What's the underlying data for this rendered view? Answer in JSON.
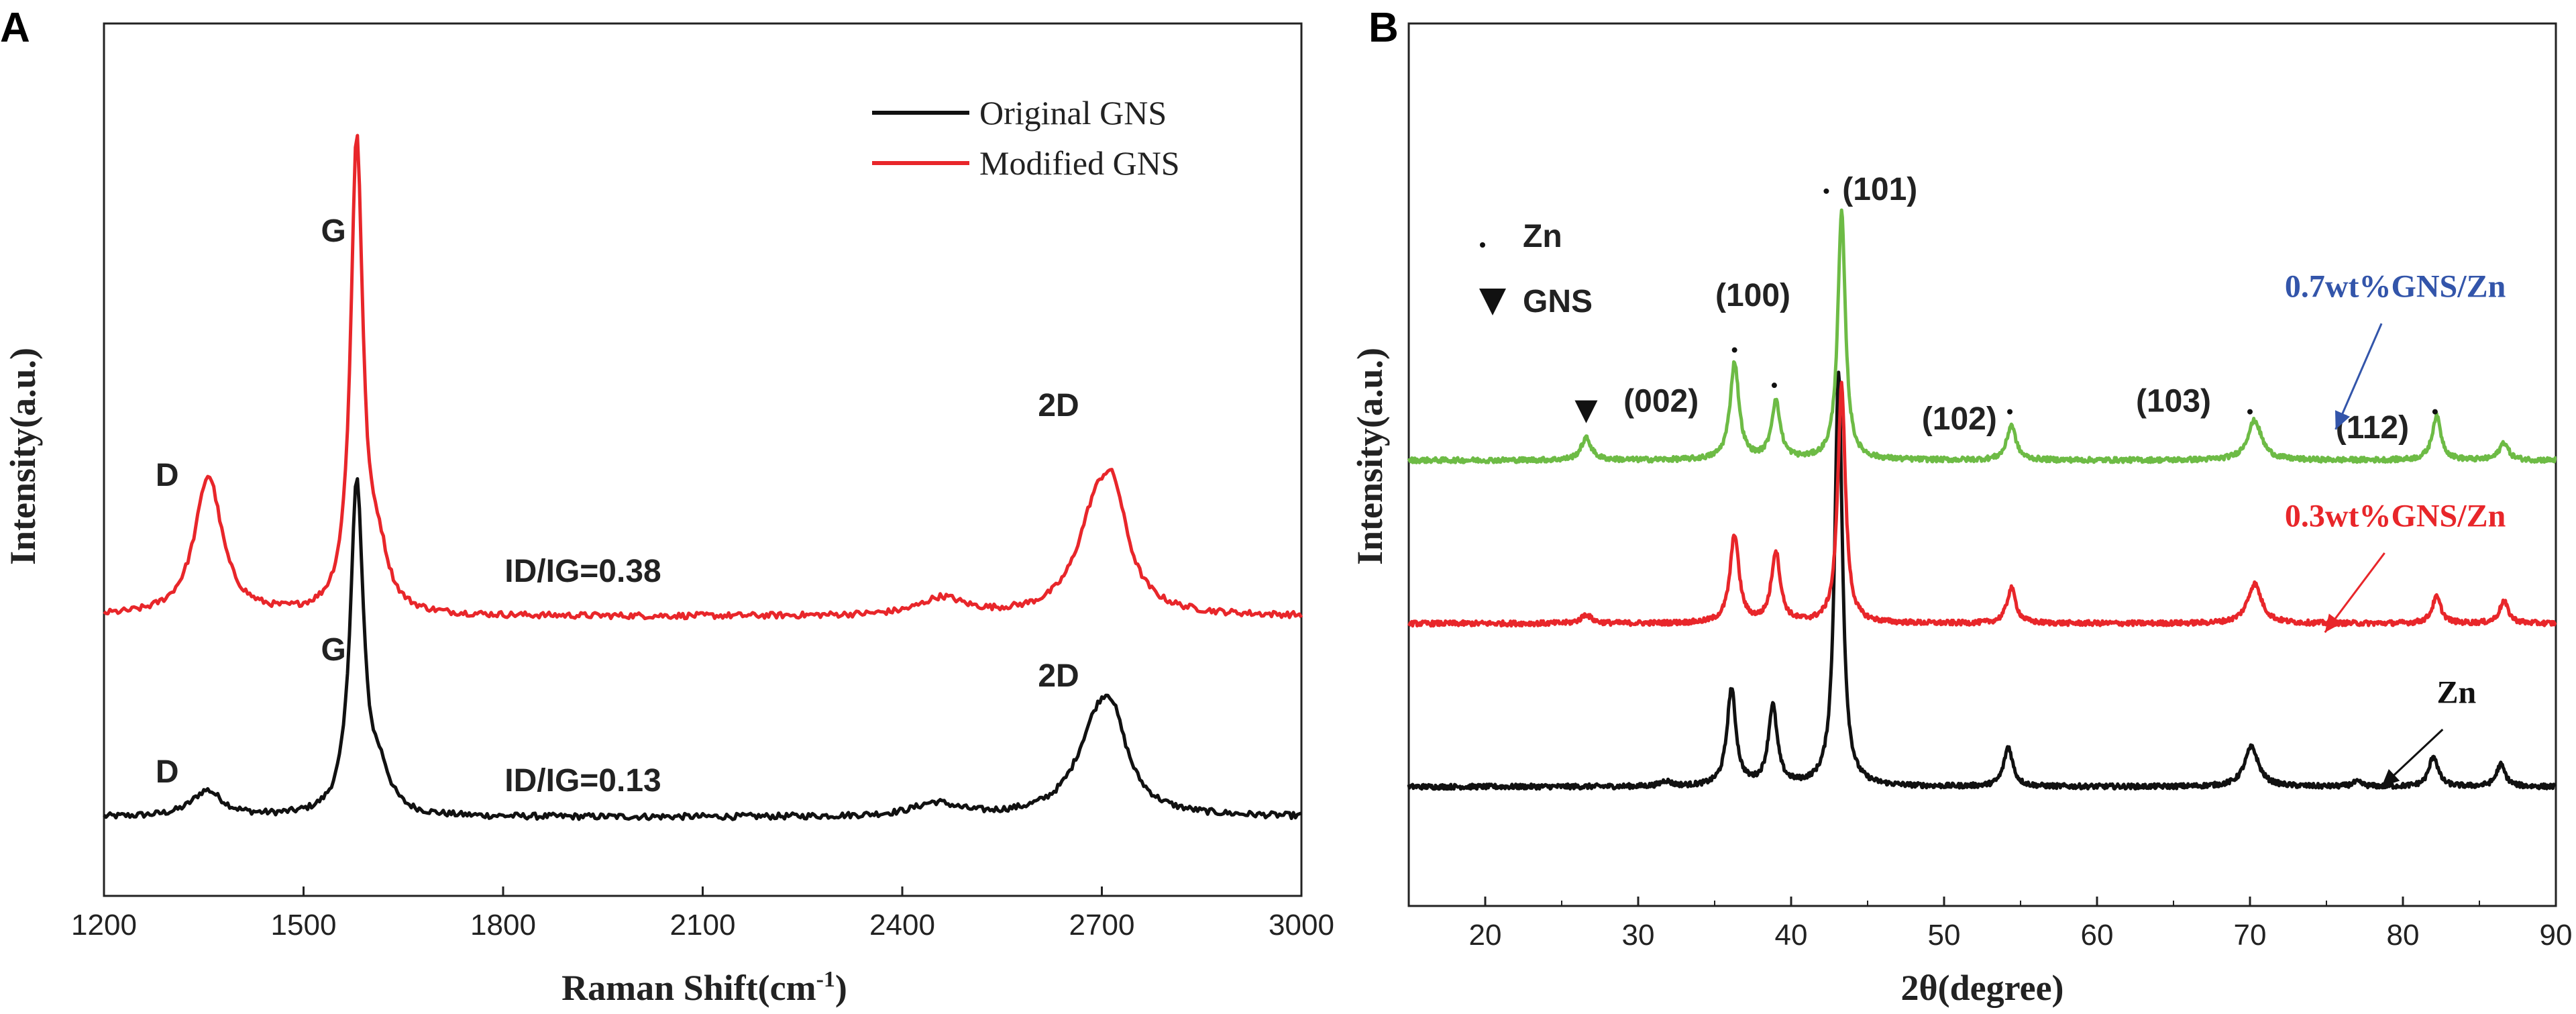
{
  "colors": {
    "black": "#111111",
    "red": "#e8262a",
    "green": "#6dbb45",
    "blue": "#3355aa",
    "axis": "#222222"
  },
  "chart_data": [
    {
      "type": "line",
      "panel_label": "A",
      "xlabel": "Raman Shift(cm",
      "xlabel_sup": "-1",
      "xlabel_close": ")",
      "ylabel": "Intensity(a.u.)",
      "xlim": [
        1200,
        3000
      ],
      "ylim": [
        0,
        100
      ],
      "xticks": [
        "1200",
        "1500",
        "1800",
        "2100",
        "2400",
        "2700",
        "3000"
      ],
      "legend": {
        "position": "top-right",
        "entries": [
          "Original GNS",
          "Modified GNS"
        ]
      },
      "series": [
        {
          "name": "Original GNS",
          "color": "#111111",
          "baseline": 9,
          "peaks": [
            {
              "x": 1355,
              "h": 3,
              "w": 28
            },
            {
              "x": 1580,
              "h": 38,
              "w": 12
            },
            {
              "x": 1615,
              "h": 4,
              "w": 18
            },
            {
              "x": 2450,
              "h": 1.5,
              "w": 40
            },
            {
              "x": 2690,
              "h": 8,
              "w": 38
            },
            {
              "x": 2715,
              "h": 8,
              "w": 28
            }
          ]
        },
        {
          "name": "Modified GNS",
          "color": "#e8262a",
          "baseline": 32,
          "peaks": [
            {
              "x": 1357,
              "h": 16,
              "w": 25
            },
            {
              "x": 1580,
              "h": 54,
              "w": 11
            },
            {
              "x": 1612,
              "h": 6,
              "w": 18
            },
            {
              "x": 2460,
              "h": 2,
              "w": 40
            },
            {
              "x": 2690,
              "h": 10,
              "w": 35
            },
            {
              "x": 2718,
              "h": 10,
              "w": 26
            }
          ]
        }
      ],
      "annotations": [
        {
          "text": "D",
          "x": 1295,
          "y": 47
        },
        {
          "text": "G",
          "x": 1545,
          "y": 75
        },
        {
          "text": "2D",
          "x": 2635,
          "y": 55
        },
        {
          "text": "ID/IG=0.38",
          "x": 1920,
          "y": 36
        },
        {
          "text": "D",
          "x": 1295,
          "y": 13
        },
        {
          "text": "G",
          "x": 1545,
          "y": 27
        },
        {
          "text": "2D",
          "x": 2635,
          "y": 24
        },
        {
          "text": "ID/IG=0.13",
          "x": 1920,
          "y": 12
        }
      ]
    },
    {
      "type": "line",
      "panel_label": "B",
      "xlabel": "2θ(degree)",
      "ylabel": "Intensity(a.u.)",
      "xlim": [
        15,
        90
      ],
      "ylim": [
        0,
        100
      ],
      "xticks": [
        "20",
        "30",
        "40",
        "50",
        "60",
        "70",
        "80",
        "90"
      ],
      "legend": {
        "position": "top-left",
        "entries": [
          "Zn",
          "GNS"
        ]
      },
      "series": [
        {
          "name": "Zn",
          "color": "#111111",
          "baseline": 13.5,
          "peaks": [
            {
              "x": 36.1,
              "h": 11,
              "w": 0.35
            },
            {
              "x": 38.8,
              "h": 9,
              "w": 0.35
            },
            {
              "x": 43.1,
              "h": 47,
              "w": 0.3
            },
            {
              "x": 54.2,
              "h": 4.5,
              "w": 0.35
            },
            {
              "x": 70.1,
              "h": 4.5,
              "w": 0.55
            },
            {
              "x": 82.0,
              "h": 3.5,
              "w": 0.35
            },
            {
              "x": 86.4,
              "h": 2.5,
              "w": 0.35
            },
            {
              "x": 31.8,
              "h": 0.6,
              "w": 0.4
            },
            {
              "x": 77.0,
              "h": 0.5,
              "w": 0.4
            }
          ]
        },
        {
          "name": "0.3wt%GNS/Zn",
          "color": "#e8262a",
          "baseline": 32,
          "peaks": [
            {
              "x": 26.6,
              "h": 1,
              "w": 0.4
            },
            {
              "x": 36.3,
              "h": 10,
              "w": 0.35
            },
            {
              "x": 39.0,
              "h": 8,
              "w": 0.35
            },
            {
              "x": 43.3,
              "h": 27,
              "w": 0.3
            },
            {
              "x": 54.4,
              "h": 4,
              "w": 0.35
            },
            {
              "x": 70.3,
              "h": 4.5,
              "w": 0.55
            },
            {
              "x": 82.2,
              "h": 3,
              "w": 0.35
            },
            {
              "x": 86.6,
              "h": 2.5,
              "w": 0.35
            }
          ]
        },
        {
          "name": "0.7wt%GNS/Zn",
          "color": "#6dbb45",
          "baseline": 50.5,
          "peaks": [
            {
              "x": 26.6,
              "h": 2.5,
              "w": 0.4
            },
            {
              "x": 36.3,
              "h": 11,
              "w": 0.35
            },
            {
              "x": 39.0,
              "h": 6.5,
              "w": 0.35
            },
            {
              "x": 43.3,
              "h": 28,
              "w": 0.3
            },
            {
              "x": 54.4,
              "h": 4,
              "w": 0.35
            },
            {
              "x": 70.3,
              "h": 4.5,
              "w": 0.55
            },
            {
              "x": 82.2,
              "h": 5,
              "w": 0.35
            },
            {
              "x": 86.6,
              "h": 2,
              "w": 0.35
            }
          ]
        }
      ],
      "annotations": [
        {
          "text": "(002)",
          "x": 31.5,
          "y": 56
        },
        {
          "text": "(100)",
          "x": 37.5,
          "y": 68
        },
        {
          "text": "(101)",
          "x": 45.8,
          "y": 80
        },
        {
          "text": "(102)",
          "x": 51,
          "y": 54
        },
        {
          "text": "(103)",
          "x": 65,
          "y": 56
        },
        {
          "text": "(112)",
          "x": 78,
          "y": 53
        }
      ],
      "sample_labels": [
        {
          "text": "0.7wt%GNS/Zn",
          "x": 79.5,
          "y": 69,
          "color": "#3355aa"
        },
        {
          "text": "0.3wt%GNS/Zn",
          "x": 79.5,
          "y": 43,
          "color": "#e8262a"
        },
        {
          "text": "Zn",
          "x": 83.5,
          "y": 23,
          "color": "#111111"
        }
      ],
      "zn_dots": [
        [
          36.3,
          63
        ],
        [
          38.9,
          59
        ],
        [
          42.3,
          81
        ],
        [
          54.3,
          56
        ],
        [
          70.0,
          56
        ],
        [
          82.1,
          56
        ]
      ],
      "gns_marker": [
        26.6,
        56
      ]
    }
  ]
}
